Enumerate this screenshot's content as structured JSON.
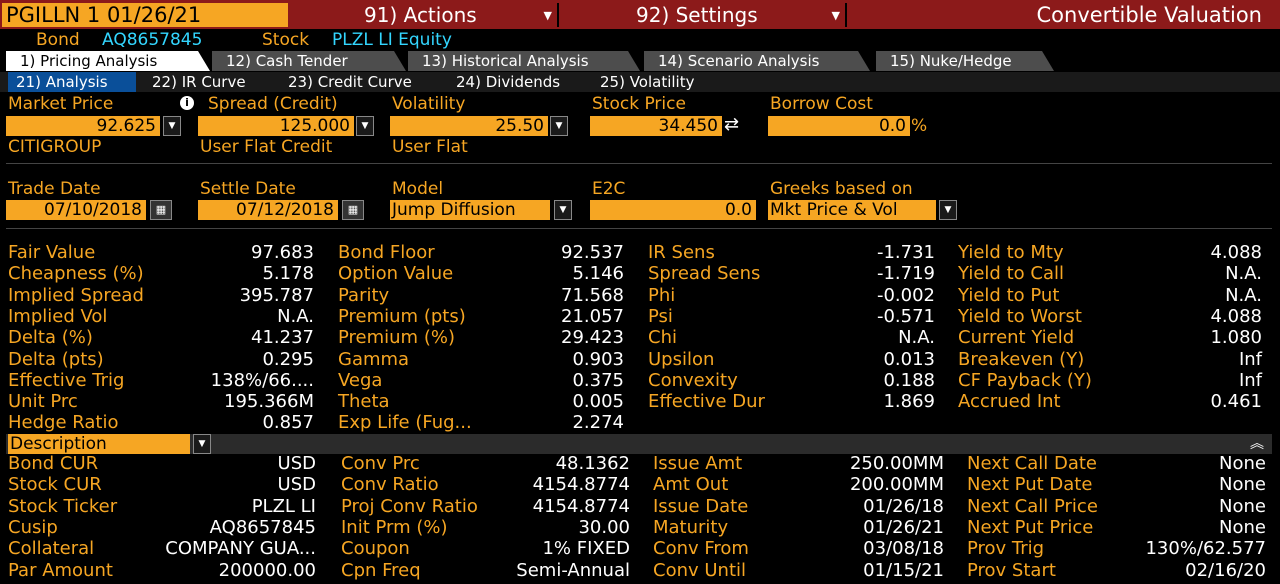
{
  "header": {
    "ticker": "PGILLN 1 01/26/21",
    "actions_menu": "91) Actions",
    "settings_menu": "92) Settings",
    "page_title": "Convertible Valuation"
  },
  "security": {
    "bond_label": "Bond",
    "bond_id": "AQ8657845",
    "stock_label": "Stock",
    "stock_id": "PLZL LI Equity"
  },
  "tabs": [
    {
      "label": "1) Pricing Analysis",
      "active": true
    },
    {
      "label": "12) Cash Tender",
      "active": false
    },
    {
      "label": "13) Historical Analysis",
      "active": false
    },
    {
      "label": "14) Scenario Analysis",
      "active": false
    },
    {
      "label": "15) Nuke/Hedge",
      "active": false
    }
  ],
  "subtabs": [
    {
      "label": "21) Analysis",
      "active": true
    },
    {
      "label": "22) IR Curve",
      "active": false
    },
    {
      "label": "23) Credit Curve",
      "active": false
    },
    {
      "label": "24) Dividends",
      "active": false
    },
    {
      "label": "25) Volatility",
      "active": false
    }
  ],
  "inputs": {
    "market_price": {
      "label": "Market Price",
      "value": "92.625",
      "source": "CITIGROUP"
    },
    "spread": {
      "label": "Spread (Credit)",
      "value": "125.000",
      "source": "User Flat Credit"
    },
    "volatility": {
      "label": "Volatility",
      "value": "25.50",
      "source": "User Flat"
    },
    "stock_price": {
      "label": "Stock Price",
      "value": "34.450"
    },
    "borrow_cost": {
      "label": "Borrow Cost",
      "value": "0.0",
      "unit": "%"
    },
    "trade_date": {
      "label": "Trade Date",
      "value": "07/10/2018"
    },
    "settle_date": {
      "label": "Settle Date",
      "value": "07/12/2018"
    },
    "model": {
      "label": "Model",
      "value": "Jump Diffusion"
    },
    "e2c": {
      "label": "E2C",
      "value": "0.0"
    },
    "greeks": {
      "label": "Greeks based on",
      "value": "Mkt Price & Vol"
    }
  },
  "results": {
    "col1": [
      {
        "label": "Fair Value",
        "value": "97.683"
      },
      {
        "label": "Cheapness (%)",
        "value": "5.178"
      },
      {
        "label": "Implied Spread",
        "value": "395.787"
      },
      {
        "label": "Implied Vol",
        "value": "N.A."
      },
      {
        "label": "Delta (%)",
        "value": "41.237"
      },
      {
        "label": "Delta (pts)",
        "value": "0.295"
      },
      {
        "label": "Effective Trig",
        "value": "138%/66...."
      },
      {
        "label": "Unit Prc",
        "value": "195.366M"
      },
      {
        "label": "Hedge Ratio",
        "value": "0.857"
      }
    ],
    "col2": [
      {
        "label": "Bond Floor",
        "value": "92.537"
      },
      {
        "label": "Option Value",
        "value": "5.146"
      },
      {
        "label": "Parity",
        "value": "71.568"
      },
      {
        "label": "Premium (pts)",
        "value": "21.057"
      },
      {
        "label": "Premium (%)",
        "value": "29.423"
      },
      {
        "label": "Gamma",
        "value": "0.903"
      },
      {
        "label": "Vega",
        "value": "0.375"
      },
      {
        "label": "Theta",
        "value": "0.005"
      },
      {
        "label": "Exp Life (Fug...",
        "value": "2.274"
      }
    ],
    "col3": [
      {
        "label": "IR Sens",
        "value": "-1.731"
      },
      {
        "label": "Spread Sens",
        "value": "-1.719"
      },
      {
        "label": "Phi",
        "value": "-0.002"
      },
      {
        "label": "Psi",
        "value": "-0.571"
      },
      {
        "label": "Chi",
        "value": "N.A."
      },
      {
        "label": "Upsilon",
        "value": "0.013"
      },
      {
        "label": "Convexity",
        "value": "0.188"
      },
      {
        "label": "Effective Dur",
        "value": "1.869"
      }
    ],
    "col4": [
      {
        "label": "Yield to Mty",
        "value": "4.088"
      },
      {
        "label": "Yield to Call",
        "value": "N.A."
      },
      {
        "label": "Yield to Put",
        "value": "N.A."
      },
      {
        "label": "Yield to Worst",
        "value": "4.088"
      },
      {
        "label": "Current Yield",
        "value": "1.080"
      },
      {
        "label": "Breakeven (Y)",
        "value": "Inf"
      },
      {
        "label": "CF Payback (Y)",
        "value": "Inf"
      },
      {
        "label": "Accrued Int",
        "value": "0.461"
      }
    ]
  },
  "description": {
    "selector": "Description",
    "col1": [
      {
        "label": "Bond CUR",
        "value": "USD"
      },
      {
        "label": "Stock CUR",
        "value": "USD"
      },
      {
        "label": "Stock Ticker",
        "value": "PLZL LI"
      },
      {
        "label": "Cusip",
        "value": "AQ8657845"
      },
      {
        "label": "Collateral",
        "value": "COMPANY GUA..."
      },
      {
        "label": "Par Amount",
        "value": "200000.00"
      }
    ],
    "col2": [
      {
        "label": "Conv Prc",
        "value": "48.1362"
      },
      {
        "label": "Conv Ratio",
        "value": "4154.8774"
      },
      {
        "label": "Proj Conv Ratio",
        "value": "4154.8774"
      },
      {
        "label": "Init Prm (%)",
        "value": "30.00"
      },
      {
        "label": "Coupon",
        "value": "1% FIXED"
      },
      {
        "label": "Cpn Freq",
        "value": "Semi-Annual"
      }
    ],
    "col3": [
      {
        "label": "Issue Amt",
        "value": "250.00MM"
      },
      {
        "label": "Amt Out",
        "value": "200.00MM"
      },
      {
        "label": "Issue Date",
        "value": "01/26/18"
      },
      {
        "label": "Maturity",
        "value": "01/26/21"
      },
      {
        "label": "Conv From",
        "value": "03/08/18"
      },
      {
        "label": "Conv Until",
        "value": "01/15/21"
      }
    ],
    "col4": [
      {
        "label": "Next Call Date",
        "value": "None"
      },
      {
        "label": "Next Put Date",
        "value": "None"
      },
      {
        "label": "Next Call Price",
        "value": "None"
      },
      {
        "label": "Next Put Price",
        "value": "None"
      },
      {
        "label": "Prov Trig",
        "value": "130%/62.577"
      },
      {
        "label": "Prov Start",
        "value": "02/16/20"
      }
    ]
  },
  "colors": {
    "accent": "#f6a623",
    "title_bar": "#8c1a1a",
    "link": "#33d6ff",
    "active_subtab": "#0a4f99"
  }
}
